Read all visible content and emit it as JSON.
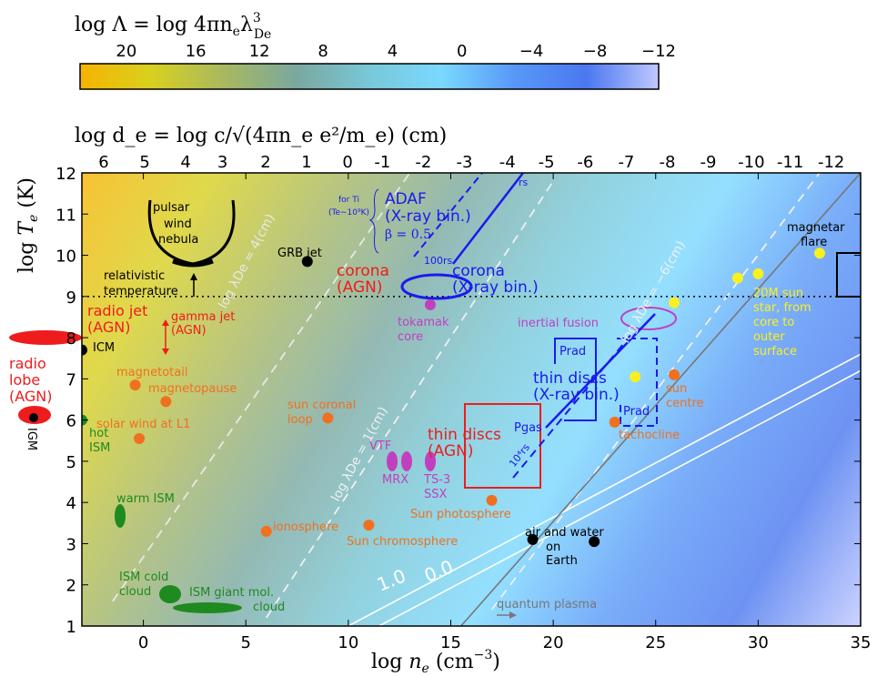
{
  "chart_data": {
    "type": "scatter",
    "title": "",
    "xlabel": "log n_e (cm^-3)",
    "ylabel": "log T_e (K)",
    "xlim": [
      -3,
      35
    ],
    "ylim": [
      1,
      12
    ],
    "x_ticks": [
      0,
      5,
      10,
      15,
      20,
      25,
      30,
      35
    ],
    "y_ticks": [
      1,
      2,
      3,
      4,
      5,
      6,
      7,
      8,
      9,
      10,
      11,
      12
    ],
    "top_axis": {
      "label": "log d_e = log c/√(4πn_e e²/m_e) (cm)",
      "ticks": [
        {
          "n": -3.0,
          "label": "6"
        },
        {
          "n": -1.0,
          "label": "5"
        },
        {
          "n": 1.0,
          "label": "4"
        },
        {
          "n": 2.8,
          "label": "3"
        },
        {
          "n": 4.9,
          "label": "2"
        },
        {
          "n": 6.9,
          "label": "1"
        },
        {
          "n": 8.9,
          "label": "0"
        },
        {
          "n": 10.6,
          "label": "-1"
        },
        {
          "n": 12.6,
          "label": "-2"
        },
        {
          "n": 14.6,
          "label": "-3"
        },
        {
          "n": 16.7,
          "label": "-4"
        },
        {
          "n": 18.6,
          "label": "-5"
        },
        {
          "n": 20.5,
          "label": "-6"
        },
        {
          "n": 22.5,
          "label": "-7"
        },
        {
          "n": 24.5,
          "label": "-8"
        },
        {
          "n": 26.5,
          "label": "-9"
        },
        {
          "n": 28.6,
          "label": "-10"
        },
        {
          "n": 30.5,
          "label": "-11"
        },
        {
          "n": 32.5,
          "label": "-12"
        }
      ]
    },
    "colorbar": {
      "label": "log Λ = log 4πn_e λ³_De",
      "ticks": [
        {
          "pos": 0.08,
          "label": "20"
        },
        {
          "pos": 0.2,
          "label": "16"
        },
        {
          "pos": 0.31,
          "label": "12"
        },
        {
          "pos": 0.42,
          "label": "8"
        },
        {
          "pos": 0.54,
          "label": "4"
        },
        {
          "pos": 0.66,
          "label": "0"
        },
        {
          "pos": 0.78,
          "label": "−4"
        },
        {
          "pos": 0.89,
          "label": "−8"
        },
        {
          "pos": 1.0,
          "label": "−12"
        }
      ],
      "colors": [
        "#f6b400",
        "#d8d020",
        "#a8b860",
        "#7aa8a0",
        "#78c8d8",
        "#7ad8ff",
        "#5898f8",
        "#4a78f0",
        "#c0c8ff"
      ]
    },
    "reference_lines": [
      {
        "label": "log λDe = 4(cm)",
        "points": [
          [
            -1.5,
            1.6
          ],
          [
            13,
            12
          ]
        ],
        "style": "dash",
        "color": "#e8e8e8"
      },
      {
        "label": "log λDe = 1(cm)",
        "points": [
          [
            6,
            1.2
          ],
          [
            20,
            11.8
          ]
        ],
        "style": "dash",
        "color": "#f0f0f0"
      },
      {
        "label": "log λDe = −6(cm)",
        "points": [
          [
            17,
            1.4
          ],
          [
            33,
            12
          ]
        ],
        "style": "dash",
        "color": "#f0f0f0"
      },
      {
        "label": "1.0",
        "points": [
          [
            10,
            1
          ],
          [
            35,
            7.6
          ]
        ],
        "style": "solid",
        "color": "#ffffff"
      },
      {
        "label": "0.0",
        "points": [
          [
            11.5,
            1
          ],
          [
            35,
            7.2
          ]
        ],
        "style": "solid",
        "color": "#ffffff"
      },
      {
        "label": "",
        "points": [
          [
            15.5,
            1
          ],
          [
            35,
            12
          ]
        ],
        "style": "solid",
        "color": "#777777"
      },
      {
        "label": "relativistic temperature",
        "points": [
          [
            -3,
            9
          ],
          [
            35,
            9
          ]
        ],
        "style": "dot",
        "color": "#000000"
      }
    ],
    "points": [
      {
        "label": "GRB jet",
        "x": 8,
        "y": 9.85,
        "color": "#000000"
      },
      {
        "label": "ICM",
        "x": -3,
        "y": 7.7,
        "color": "#000000"
      },
      {
        "label": "IGM",
        "x": -3.6,
        "y": 6.1,
        "color": "#000000"
      },
      {
        "label": "air and water on Earth",
        "x": 19,
        "y": 3.1,
        "color": "#000000"
      },
      {
        "label": "",
        "x": 22,
        "y": 3.05,
        "color": "#000000"
      },
      {
        "label": "hot ISM",
        "x": -3,
        "y": 6,
        "color": "#1f8a1f"
      },
      {
        "label": "magnetotail",
        "x": -0.4,
        "y": 6.85,
        "color": "#f07020"
      },
      {
        "label": "magnetopause",
        "x": 1.1,
        "y": 6.45,
        "color": "#f07020"
      },
      {
        "label": "solar wind at L1",
        "x": -0.2,
        "y": 5.55,
        "color": "#f07020"
      },
      {
        "label": "sun coronal loop",
        "x": 9,
        "y": 6.05,
        "color": "#f07020"
      },
      {
        "label": "ionosphere",
        "x": 6,
        "y": 3.3,
        "color": "#f07020"
      },
      {
        "label": "Sun chromosphere",
        "x": 11,
        "y": 3.45,
        "color": "#f07020"
      },
      {
        "label": "Sun photosphere",
        "x": 17,
        "y": 4.05,
        "color": "#f07020"
      },
      {
        "label": "tachocline",
        "x": 23,
        "y": 5.95,
        "color": "#f07020"
      },
      {
        "label": "sun centre",
        "x": 25.9,
        "y": 7.1,
        "color": "#f07020"
      },
      {
        "label": "tokamak core",
        "x": 14,
        "y": 8.8,
        "color": "#c040c0"
      },
      {
        "label": "20M_sun star, from core to outer surface",
        "x": 24,
        "y": 7.05,
        "color": "#f8f020"
      },
      {
        "label": "",
        "x": 25.9,
        "y": 8.85,
        "color": "#f8f020"
      },
      {
        "label": "",
        "x": 29,
        "y": 9.45,
        "color": "#f8f020"
      },
      {
        "label": "",
        "x": 30,
        "y": 9.55,
        "color": "#f8f020"
      },
      {
        "label": "magnetar flare",
        "x": 33,
        "y": 10.05,
        "color": "#f8f020"
      }
    ],
    "regions": [
      {
        "label": "radio jet (AGN)",
        "color": "#ee1c1c"
      },
      {
        "label": "radio lobe (AGN)",
        "color": "#ee1c1c"
      },
      {
        "label": "gamma jet (AGN)",
        "color": "#ee1c1c"
      },
      {
        "label": "corona (AGN)",
        "color": "#ee1c1c"
      },
      {
        "label": "thin discs (AGN)",
        "color": "#ee1c1c"
      },
      {
        "label": "pulsar wind nebula",
        "color": "#000000"
      },
      {
        "label": "warm ISM",
        "color": "#1f8a1f"
      },
      {
        "label": "ISM cold cloud",
        "color": "#1f8a1f"
      },
      {
        "label": "ISM giant mol. cloud",
        "color": "#1f8a1f"
      },
      {
        "label": "VTF",
        "color": "#c040c0"
      },
      {
        "label": "MRX",
        "color": "#c040c0"
      },
      {
        "label": "TS-3 SSX",
        "color": "#c040c0"
      },
      {
        "label": "inertial fusion",
        "color": "#c040c0"
      },
      {
        "label": "ADAF (X-ray bin.)",
        "color": "#1a1aee"
      },
      {
        "label": "corona (X-ray bin.)",
        "color": "#1a1aee"
      },
      {
        "label": "thin discs (X-ray bin.)",
        "color": "#1a1aee"
      }
    ]
  },
  "labels": {
    "colorbar_title": "log Λ = log 4πn",
    "colorbar_title_sub": "e",
    "colorbar_title_tail": "λ",
    "colorbar_title_sup": "3",
    "colorbar_title_sub2": "De",
    "top_title": "log d_e = log c/√(4πn_e e²/m_e) (cm)",
    "y_title": "log T_e (K)",
    "x_title": "log n_e (cm^-3)",
    "pulsar1": "pulsar",
    "pulsar2": "wind",
    "pulsar3": "nebula",
    "grb": "GRB jet",
    "rel1": "relativistic",
    "rel2": "temperature",
    "for_ti1": "for Ti",
    "for_ti2": "(Te∼10⁹K)",
    "adaf1": "ADAF",
    "adaf2": "(X-ray bin.)",
    "beta": "β = 0.5",
    "rs": "rs",
    "100rs": "100rs",
    "corona_agn1": "corona",
    "corona_agn2": "(AGN)",
    "corona_xrb1": "corona",
    "corona_xrb2": "(X-ray bin.)",
    "radio_jet1": "radio jet",
    "radio_jet2": "(AGN)",
    "gamma1": "gamma jet",
    "gamma2": "(AGN)",
    "icm": "ICM",
    "lobe1": "radio",
    "lobe2": "lobe",
    "lobe3": "(AGN)",
    "igm": "IGM",
    "magnetotail": "magnetotail",
    "magnetopause": "magnetopause",
    "hot1": "hot",
    "hot2": "ISM",
    "sw": "solar wind at L1",
    "scl1": "sun coronal",
    "scl2": "loop",
    "tok1": "tokamak",
    "tok2": "core",
    "vtf": "VTF",
    "mrx": "MRX",
    "ts1": "TS-3",
    "ts2": "SSX",
    "thin_agn1": "thin discs",
    "thin_agn2": "(AGN)",
    "pgas": "Pgas",
    "1e4rs": "10⁴rs",
    "prad": "Prad",
    "thin_xrb1": "thin discs",
    "thin_xrb2": "(X-ray bin.)",
    "inertial": "inertial fusion",
    "magnetar1": "magnetar",
    "magnetar2": "flare",
    "star1": "20M  sun",
    "star2": "star, from",
    "star3": "core to",
    "star4": "outer",
    "star5": "surface",
    "sun_c1": "sun",
    "sun_c2": "centre",
    "tacho": "tachocline",
    "warm": "warm ISM",
    "iono": "ionosphere",
    "chromo": "Sun chromosphere",
    "photo": "Sun photosphere",
    "air1": "air and water",
    "air2": "on",
    "air3": "Earth",
    "cold1": "ISM cold",
    "cold2": "cloud",
    "giant1": "ISM giant mol.",
    "giant2": "cloud",
    "qp": "quantum plasma",
    "line4": "log λDe = 4(cm)",
    "line1": "log λDe = 1(cm)",
    "line6": "log λDe = −6(cm)",
    "c10": "1.0",
    "c00": "0.0"
  }
}
